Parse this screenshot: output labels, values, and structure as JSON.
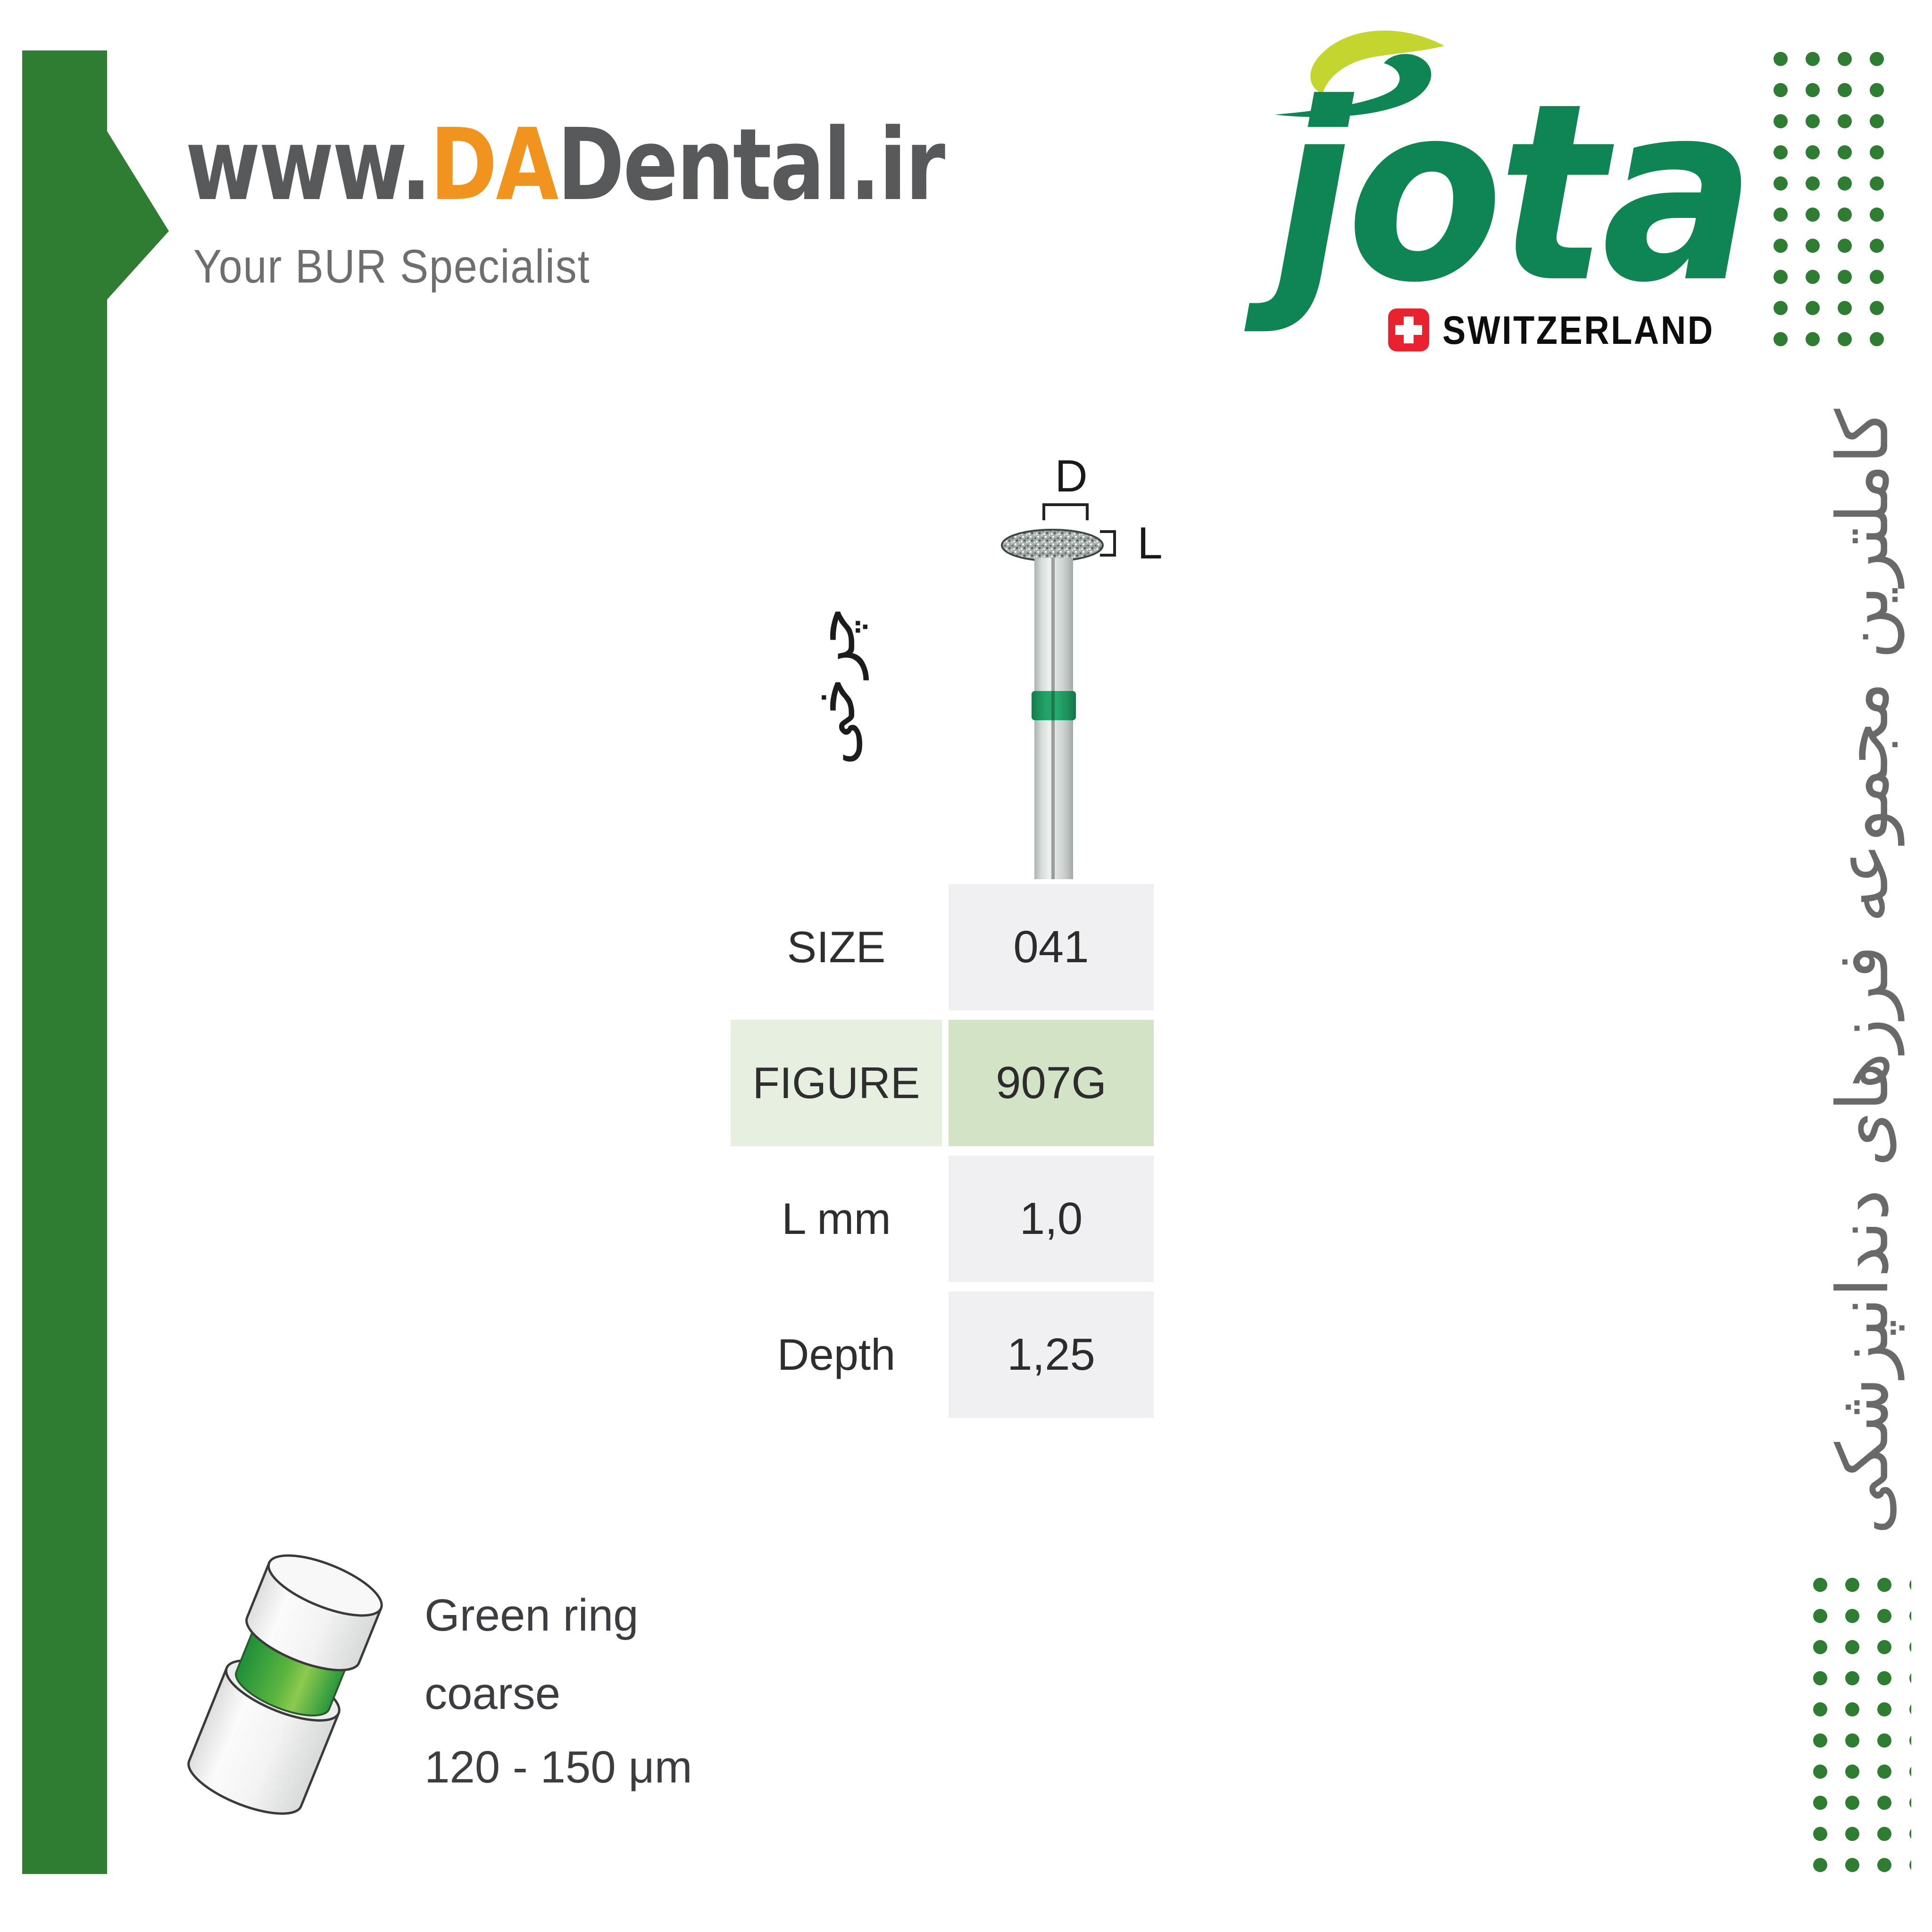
{
  "brand": {
    "url_prefix": "www.",
    "url_highlight": "DA",
    "url_suffix": "Dental.ir",
    "tagline": "Your BUR Specialist"
  },
  "jota": {
    "wordmark": "jota",
    "country": "SWITZERLAND"
  },
  "persian": {
    "side_text": "کاملترین مجموعه فرزهای دندانپزشکی",
    "wheel_label": "چرخی"
  },
  "diagram": {
    "diameter_label": "D",
    "length_label": "L"
  },
  "spec_table": {
    "rows": [
      {
        "label": "SIZE",
        "value": "041"
      },
      {
        "label": "FIGURE",
        "value": "907G"
      },
      {
        "label": "L mm",
        "value": "1,0"
      },
      {
        "label": "Depth",
        "value": "1,25"
      }
    ]
  },
  "legend": {
    "lines": [
      "Green ring",
      "coarse",
      "120 - 150 μm"
    ]
  },
  "decor": {
    "dot_grid_columns": 4,
    "dot_grid_rows": 10
  },
  "colors": {
    "ribbon_green": "#2e7d32",
    "jota_green": "#0e8552",
    "jota_lime": "#c3d62f",
    "swiss_red": "#e8232f",
    "brand_orange": "#f0941f",
    "brand_gray": "#58595b",
    "ring_green": "#22a168",
    "table_gray_cell": "#f0f0f2",
    "table_green_label_cell": "#e6efe0",
    "table_green_value_cell": "#d2e3c6"
  }
}
